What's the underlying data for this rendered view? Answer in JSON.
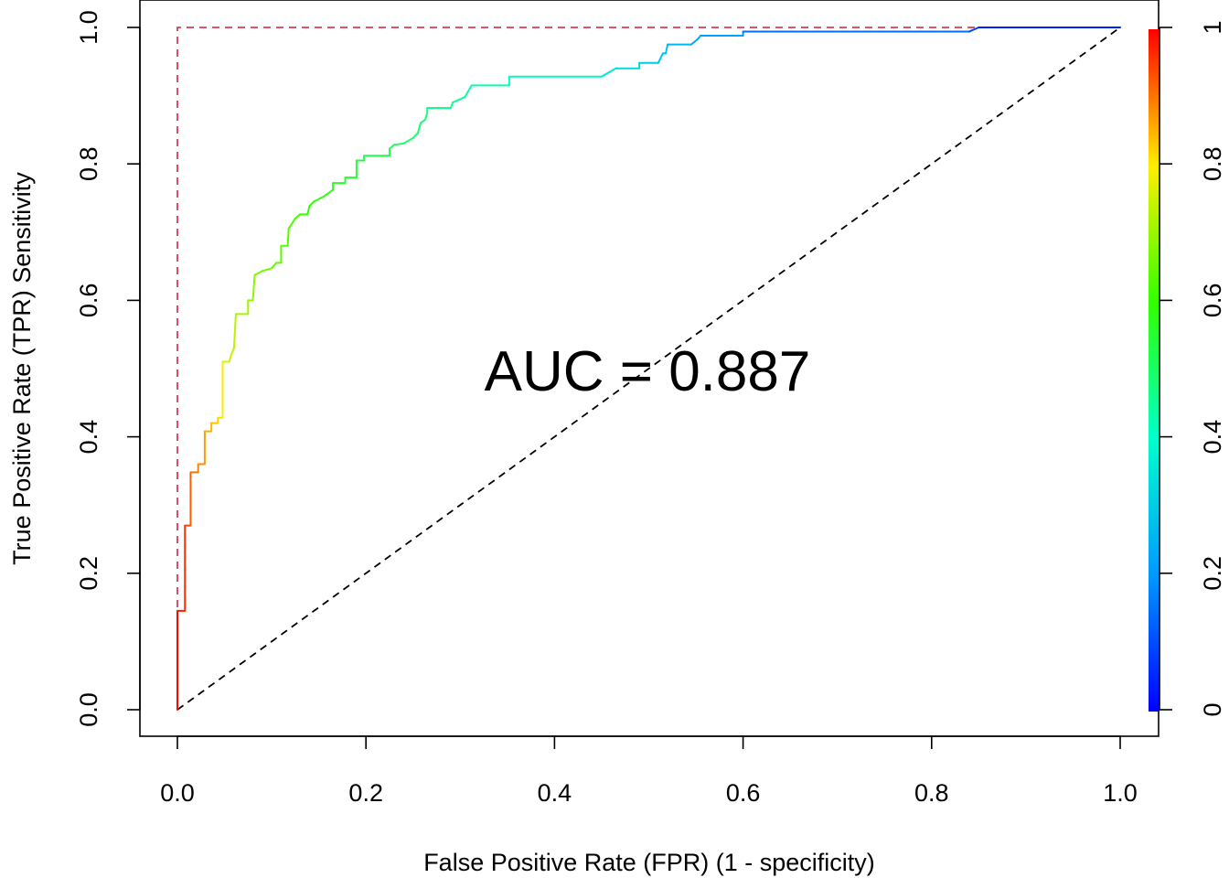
{
  "chart_data": {
    "type": "line",
    "annotation": "AUC = 0.887",
    "xlabel": "False Positive Rate (FPR) (1 - specificity)",
    "ylabel": "True Positive Rate (TPR) Sensitivity",
    "xlim": [
      0,
      1
    ],
    "ylim": [
      0,
      1
    ],
    "x_ticks": [
      "0.0",
      "0.2",
      "0.4",
      "0.6",
      "0.8",
      "1.0"
    ],
    "y_ticks": [
      "0.0",
      "0.2",
      "0.4",
      "0.6",
      "0.8",
      "1.0"
    ],
    "colorbar": {
      "ticks": [
        "0",
        "0.2",
        "0.4",
        "0.6",
        "0.8",
        "1"
      ],
      "range": [
        0,
        1
      ],
      "colormap": "rainbow",
      "colors": {
        "low": "#0000ff",
        "high": "#ff0000"
      }
    },
    "grid": false,
    "series": [
      {
        "color_by": "threshold",
        "points": [
          [
            0.0,
            0.0,
            1.0
          ],
          [
            0.0,
            0.145,
            0.99
          ],
          [
            0.008,
            0.145,
            0.97
          ],
          [
            0.008,
            0.27,
            0.95
          ],
          [
            0.014,
            0.27,
            0.93
          ],
          [
            0.014,
            0.348,
            0.91
          ],
          [
            0.022,
            0.348,
            0.9
          ],
          [
            0.022,
            0.36,
            0.89
          ],
          [
            0.029,
            0.36,
            0.88
          ],
          [
            0.029,
            0.408,
            0.86
          ],
          [
            0.036,
            0.408,
            0.85
          ],
          [
            0.036,
            0.42,
            0.84
          ],
          [
            0.043,
            0.42,
            0.83
          ],
          [
            0.043,
            0.428,
            0.82
          ],
          [
            0.048,
            0.428,
            0.81
          ],
          [
            0.048,
            0.51,
            0.77
          ],
          [
            0.055,
            0.51,
            0.76
          ],
          [
            0.057,
            0.52,
            0.75
          ],
          [
            0.06,
            0.53,
            0.74
          ],
          [
            0.062,
            0.58,
            0.72
          ],
          [
            0.075,
            0.58,
            0.71
          ],
          [
            0.075,
            0.6,
            0.7
          ],
          [
            0.08,
            0.6,
            0.69
          ],
          [
            0.082,
            0.637,
            0.68
          ],
          [
            0.09,
            0.643,
            0.67
          ],
          [
            0.1,
            0.647,
            0.66
          ],
          [
            0.105,
            0.655,
            0.65
          ],
          [
            0.11,
            0.655,
            0.645
          ],
          [
            0.11,
            0.68,
            0.64
          ],
          [
            0.117,
            0.68,
            0.635
          ],
          [
            0.118,
            0.705,
            0.63
          ],
          [
            0.125,
            0.72,
            0.62
          ],
          [
            0.13,
            0.726,
            0.61
          ],
          [
            0.138,
            0.726,
            0.6
          ],
          [
            0.14,
            0.738,
            0.595
          ],
          [
            0.145,
            0.745,
            0.59
          ],
          [
            0.155,
            0.752,
            0.58
          ],
          [
            0.165,
            0.762,
            0.57
          ],
          [
            0.165,
            0.772,
            0.565
          ],
          [
            0.178,
            0.772,
            0.56
          ],
          [
            0.178,
            0.78,
            0.555
          ],
          [
            0.19,
            0.78,
            0.55
          ],
          [
            0.19,
            0.805,
            0.54
          ],
          [
            0.198,
            0.805,
            0.535
          ],
          [
            0.198,
            0.812,
            0.53
          ],
          [
            0.225,
            0.812,
            0.52
          ],
          [
            0.225,
            0.822,
            0.515
          ],
          [
            0.23,
            0.828,
            0.51
          ],
          [
            0.24,
            0.83,
            0.505
          ],
          [
            0.25,
            0.838,
            0.5
          ],
          [
            0.255,
            0.845,
            0.495
          ],
          [
            0.258,
            0.86,
            0.49
          ],
          [
            0.263,
            0.865,
            0.485
          ],
          [
            0.265,
            0.875,
            0.48
          ],
          [
            0.265,
            0.882,
            0.475
          ],
          [
            0.29,
            0.882,
            0.46
          ],
          [
            0.292,
            0.89,
            0.455
          ],
          [
            0.305,
            0.898,
            0.45
          ],
          [
            0.312,
            0.915,
            0.44
          ],
          [
            0.352,
            0.915,
            0.42
          ],
          [
            0.352,
            0.928,
            0.41
          ],
          [
            0.45,
            0.928,
            0.36
          ],
          [
            0.465,
            0.94,
            0.34
          ],
          [
            0.49,
            0.94,
            0.32
          ],
          [
            0.49,
            0.948,
            0.31
          ],
          [
            0.51,
            0.948,
            0.29
          ],
          [
            0.515,
            0.962,
            0.28
          ],
          [
            0.518,
            0.962,
            0.275
          ],
          [
            0.52,
            0.975,
            0.27
          ],
          [
            0.545,
            0.975,
            0.25
          ],
          [
            0.552,
            0.983,
            0.24
          ],
          [
            0.555,
            0.988,
            0.235
          ],
          [
            0.6,
            0.988,
            0.2
          ],
          [
            0.6,
            0.994,
            0.19
          ],
          [
            0.84,
            0.994,
            0.1
          ],
          [
            0.85,
            1.0,
            0.08
          ],
          [
            1.0,
            1.0,
            0.0
          ]
        ]
      }
    ],
    "reference_lines": [
      {
        "style": "dashed",
        "color": "#000000",
        "points": [
          [
            0,
            0
          ],
          [
            1,
            1
          ]
        ]
      },
      {
        "style": "dashed",
        "color": "#d43f55",
        "points": [
          [
            0,
            0
          ],
          [
            0,
            1
          ],
          [
            1,
            1
          ]
        ]
      }
    ]
  }
}
